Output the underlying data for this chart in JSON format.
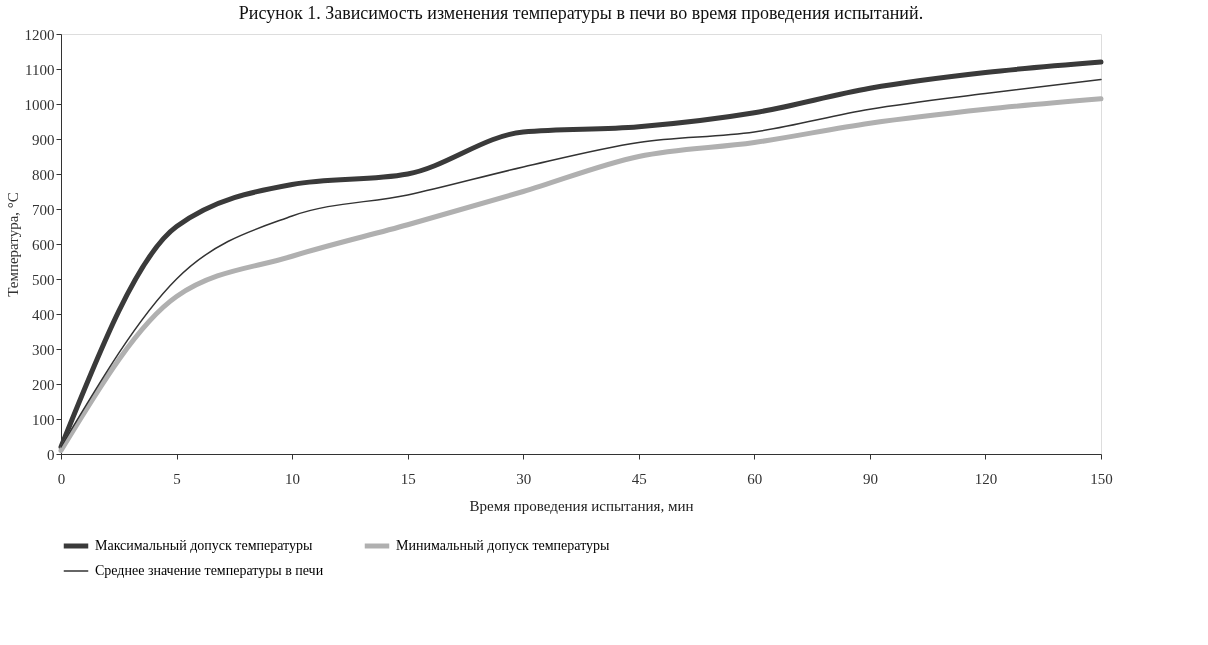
{
  "chart_data": {
    "type": "line",
    "title": "Рисунок 1. Зависимость изменения температуры в печи во время проведения испытаний.",
    "xlabel": "Время проведения испытания, мин",
    "ylabel": "Температура, °C",
    "categories": [
      "0",
      "5",
      "10",
      "15",
      "30",
      "45",
      "60",
      "90",
      "120",
      "150"
    ],
    "series": [
      {
        "name": "Максимальный допуск температуры",
        "color": "#3a3a3a",
        "values": [
          20,
          650,
          770,
          800,
          920,
          935,
          975,
          1045,
          1090,
          1120
        ]
      },
      {
        "name": "Минимальный допуск температуры",
        "color": "#b0b0b0",
        "values": [
          10,
          450,
          565,
          655,
          750,
          850,
          890,
          945,
          985,
          1015
        ]
      },
      {
        "name": "Среднее значение температуры в печи",
        "color": "#333333",
        "values": [
          20,
          500,
          680,
          740,
          820,
          890,
          920,
          985,
          1030,
          1070
        ]
      }
    ],
    "ylim": [
      0,
      1200
    ],
    "yticks": [
      0,
      100,
      200,
      300,
      400,
      500,
      600,
      700,
      800,
      900,
      1000,
      1100,
      1200
    ],
    "grid": false,
    "legend": "bottom",
    "marker": "none",
    "line_style": "solid"
  }
}
